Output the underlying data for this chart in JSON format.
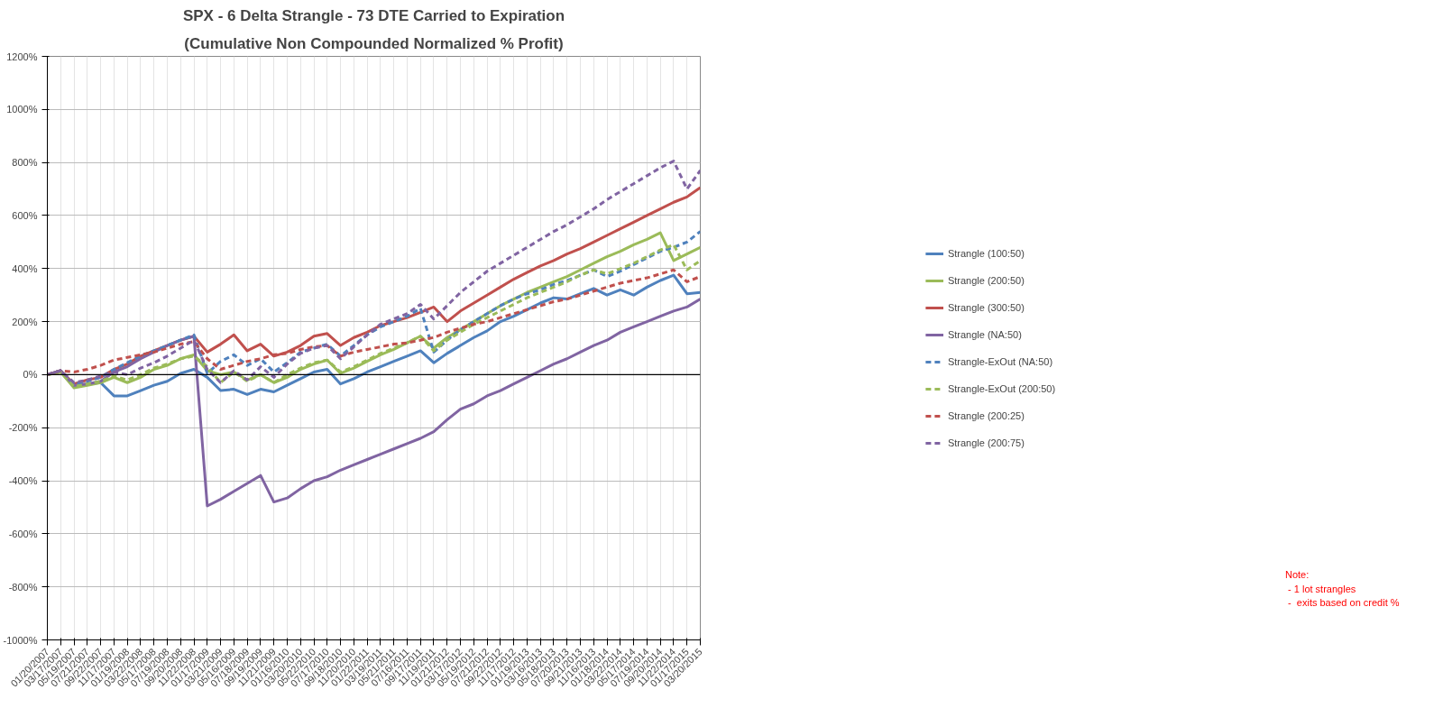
{
  "chart_data": {
    "type": "line",
    "title": "SPX - 6 Delta Strangle - 73 DTE Carried to Expiration",
    "subtitle": "(Cumulative Non Compounded Normalized % Profit)",
    "categories": [
      "01/20/2007",
      "03/17/2007",
      "05/19/2007",
      "07/21/2007",
      "09/22/2007",
      "11/17/2007",
      "01/19/2008",
      "03/22/2008",
      "05/17/2008",
      "07/19/2008",
      "09/20/2008",
      "11/22/2008",
      "01/17/2009",
      "03/21/2009",
      "05/16/2009",
      "07/18/2009",
      "09/19/2009",
      "11/21/2009",
      "01/16/2010",
      "03/20/2010",
      "05/22/2010",
      "07/17/2010",
      "09/18/2010",
      "11/20/2010",
      "01/22/2011",
      "03/19/2011",
      "05/21/2011",
      "07/16/2011",
      "09/17/2011",
      "11/19/2011",
      "01/21/2012",
      "03/17/2012",
      "05/19/2012",
      "07/21/2012",
      "09/22/2012",
      "11/17/2012",
      "01/19/2013",
      "03/16/2013",
      "05/18/2013",
      "07/20/2013",
      "09/21/2013",
      "11/16/2013",
      "01/18/2014",
      "03/22/2014",
      "05/17/2014",
      "07/19/2014",
      "09/20/2014",
      "11/22/2014",
      "01/17/2015",
      "03/20/2015"
    ],
    "series": [
      {
        "name": "Strangle (100:50)",
        "color": "#4f81bd",
        "line_style": "solid",
        "values": [
          0,
          15,
          -40,
          -35,
          -30,
          -80,
          -80,
          -60,
          -40,
          -25,
          5,
          20,
          -10,
          -60,
          -55,
          -75,
          -55,
          -65,
          -40,
          -15,
          10,
          20,
          -35,
          -15,
          10,
          30,
          50,
          70,
          90,
          45,
          80,
          110,
          140,
          165,
          200,
          220,
          245,
          270,
          290,
          285,
          305,
          325,
          300,
          320,
          300,
          330,
          355,
          375,
          305,
          310
        ]
      },
      {
        "name": "Strangle (200:50)",
        "color": "#9bbb59",
        "line_style": "solid",
        "values": [
          0,
          10,
          -50,
          -40,
          -30,
          -10,
          -30,
          -10,
          20,
          35,
          60,
          75,
          15,
          0,
          10,
          -20,
          0,
          -30,
          -10,
          20,
          40,
          55,
          5,
          25,
          50,
          75,
          95,
          120,
          145,
          100,
          140,
          170,
          200,
          230,
          260,
          285,
          310,
          330,
          350,
          370,
          395,
          420,
          445,
          465,
          490,
          510,
          535,
          430,
          455,
          480
        ]
      },
      {
        "name": "Strangle (300:50)",
        "color": "#c0504d",
        "line_style": "solid",
        "values": [
          0,
          15,
          -35,
          -20,
          -10,
          20,
          40,
          70,
          90,
          110,
          130,
          145,
          85,
          115,
          150,
          90,
          115,
          70,
          85,
          110,
          145,
          155,
          110,
          140,
          160,
          185,
          200,
          215,
          235,
          255,
          200,
          240,
          270,
          300,
          330,
          360,
          385,
          410,
          430,
          455,
          475,
          500,
          525,
          550,
          575,
          600,
          625,
          650,
          670,
          705
        ]
      },
      {
        "name": "Strangle (NA:50)",
        "color": "#8064a2",
        "line_style": "solid",
        "values": [
          0,
          15,
          -40,
          -35,
          -25,
          10,
          30,
          60,
          85,
          110,
          130,
          145,
          -495,
          -470,
          -440,
          -410,
          -380,
          -480,
          -465,
          -430,
          -400,
          -385,
          -360,
          -340,
          -320,
          -300,
          -280,
          -260,
          -240,
          -215,
          -170,
          -130,
          -110,
          -80,
          -60,
          -35,
          -10,
          15,
          40,
          60,
          85,
          110,
          130,
          160,
          180,
          200,
          220,
          240,
          255,
          285
        ]
      },
      {
        "name": "Strangle-ExOut (NA:50)",
        "color": "#4f81bd",
        "line_style": "dashed",
        "values": [
          0,
          15,
          -35,
          -25,
          -10,
          20,
          45,
          70,
          90,
          110,
          130,
          150,
          5,
          50,
          75,
          35,
          60,
          10,
          45,
          85,
          100,
          115,
          70,
          110,
          150,
          180,
          200,
          220,
          250,
          85,
          130,
          170,
          200,
          230,
          260,
          285,
          305,
          320,
          340,
          355,
          375,
          395,
          370,
          390,
          415,
          440,
          465,
          480,
          500,
          540
        ]
      },
      {
        "name": "Strangle-ExOut (200:50)",
        "color": "#9bbb59",
        "line_style": "dashed",
        "values": [
          0,
          10,
          -45,
          -35,
          -25,
          -5,
          -20,
          0,
          25,
          40,
          60,
          70,
          30,
          -30,
          10,
          -25,
          0,
          -30,
          0,
          25,
          45,
          55,
          10,
          30,
          55,
          80,
          100,
          120,
          145,
          90,
          130,
          160,
          190,
          215,
          240,
          265,
          290,
          310,
          330,
          350,
          375,
          395,
          380,
          400,
          420,
          445,
          470,
          490,
          395,
          430
        ]
      },
      {
        "name": "Strangle (200:25)",
        "color": "#c0504d",
        "line_style": "dashed",
        "values": [
          0,
          15,
          10,
          20,
          35,
          55,
          65,
          75,
          85,
          100,
          115,
          125,
          60,
          20,
          35,
          50,
          60,
          75,
          80,
          95,
          105,
          110,
          70,
          85,
          95,
          105,
          115,
          120,
          130,
          140,
          160,
          175,
          190,
          200,
          215,
          230,
          245,
          260,
          275,
          285,
          300,
          315,
          330,
          345,
          355,
          365,
          380,
          395,
          350,
          370
        ]
      },
      {
        "name": "Strangle (200:75)",
        "color": "#8064a2",
        "line_style": "dashed",
        "values": [
          0,
          15,
          -30,
          -20,
          -5,
          10,
          0,
          25,
          45,
          70,
          100,
          130,
          20,
          -30,
          15,
          -20,
          30,
          -10,
          40,
          80,
          100,
          110,
          60,
          105,
          150,
          190,
          210,
          230,
          265,
          210,
          260,
          310,
          350,
          390,
          420,
          450,
          480,
          510,
          540,
          565,
          595,
          625,
          660,
          690,
          720,
          750,
          780,
          805,
          700,
          770
        ]
      }
    ],
    "ylim": [
      -1000,
      1200
    ],
    "yticks": [
      {
        "value": -1000,
        "label": "-1000%"
      },
      {
        "value": -800,
        "label": "-800%"
      },
      {
        "value": -600,
        "label": "-600%"
      },
      {
        "value": -400,
        "label": "-400%"
      },
      {
        "value": -200,
        "label": "-200%"
      },
      {
        "value": 0,
        "label": "0%"
      },
      {
        "value": 200,
        "label": "200%"
      },
      {
        "value": 400,
        "label": "400%"
      },
      {
        "value": 600,
        "label": "600%"
      },
      {
        "value": 800,
        "label": "800%"
      },
      {
        "value": 1000,
        "label": "1000%"
      },
      {
        "value": 1200,
        "label": "1200%"
      }
    ],
    "ref_lines": [
      {
        "axis": "y",
        "value": 0,
        "color": "#000000"
      }
    ],
    "grid": true,
    "legend": "right",
    "marker": "none",
    "annotations": [
      "Note:",
      " - 1 lot strangles",
      " -  exits based on credit %"
    ]
  }
}
